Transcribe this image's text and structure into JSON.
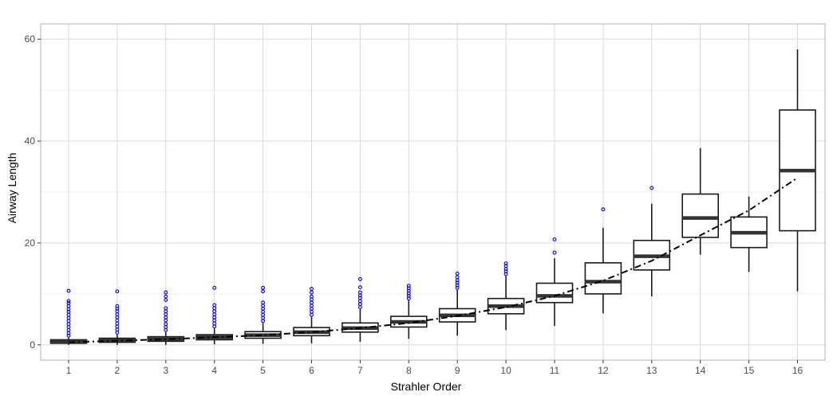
{
  "chart_data": {
    "type": "box",
    "title": "",
    "xlabel": "Strahler Order",
    "ylabel": "Airway Length",
    "categories": [
      "1",
      "2",
      "3",
      "4",
      "5",
      "6",
      "7",
      "8",
      "9",
      "10",
      "11",
      "12",
      "13",
      "14",
      "15",
      "16"
    ],
    "ylim": [
      -3,
      63
    ],
    "yticks": [
      0,
      20,
      40,
      60
    ],
    "ytick_labels": [
      "0",
      "20",
      "40",
      "60"
    ],
    "grid": true,
    "legend": "none",
    "boxes": [
      {
        "q1": 0.3,
        "median": 0.6,
        "q3": 1.0,
        "whisker_low": 0.0,
        "whisker_high": 1.4,
        "outliers": [
          1.8,
          2.3,
          2.9,
          3.5,
          4.1,
          4.7,
          5.3,
          5.9,
          6.5,
          7.0,
          7.6,
          8.2,
          8.6,
          10.6
        ]
      },
      {
        "q1": 0.5,
        "median": 0.9,
        "q3": 1.3,
        "whisker_low": 0.0,
        "whisker_high": 2.0,
        "outliers": [
          2.4,
          3.0,
          3.6,
          4.2,
          4.8,
          5.4,
          6.0,
          6.6,
          7.1,
          7.6,
          10.5
        ]
      },
      {
        "q1": 0.7,
        "median": 1.1,
        "q3": 1.6,
        "whisker_low": 0.0,
        "whisker_high": 2.5,
        "outliers": [
          2.9,
          3.5,
          4.1,
          4.8,
          5.4,
          6.0,
          6.6,
          7.2,
          8.8,
          9.5,
          10.3
        ]
      },
      {
        "q1": 1.0,
        "median": 1.5,
        "q3": 2.0,
        "whisker_low": 0.1,
        "whisker_high": 3.2,
        "outliers": [
          3.6,
          4.2,
          4.8,
          5.4,
          6.0,
          6.6,
          7.2,
          7.8,
          11.2
        ]
      },
      {
        "q1": 1.3,
        "median": 1.9,
        "q3": 2.6,
        "whisker_low": 0.2,
        "whisker_high": 4.3,
        "outliers": [
          4.7,
          5.3,
          5.9,
          6.5,
          7.1,
          7.7,
          8.3,
          10.5,
          11.2
        ]
      },
      {
        "q1": 1.8,
        "median": 2.5,
        "q3": 3.4,
        "whisker_low": 0.3,
        "whisker_high": 5.5,
        "outliers": [
          5.9,
          6.5,
          7.1,
          7.7,
          8.3,
          8.9,
          9.5,
          10.3,
          11.0
        ]
      },
      {
        "q1": 2.5,
        "median": 3.3,
        "q3": 4.3,
        "whisker_low": 0.6,
        "whisker_high": 7.0,
        "outliers": [
          7.4,
          8.0,
          8.6,
          9.2,
          9.7,
          10.3,
          11.3,
          12.9
        ]
      },
      {
        "q1": 3.5,
        "median": 4.5,
        "q3": 5.6,
        "whisker_low": 1.2,
        "whisker_high": 8.7,
        "outliers": [
          9.1,
          9.6,
          10.1,
          10.6,
          11.1,
          11.6
        ]
      },
      {
        "q1": 4.5,
        "median": 5.8,
        "q3": 7.1,
        "whisker_low": 1.8,
        "whisker_high": 10.8,
        "outliers": [
          11.2,
          11.7,
          12.2,
          12.7,
          13.3,
          14.0
        ]
      },
      {
        "q1": 6.1,
        "median": 7.6,
        "q3": 9.1,
        "whisker_low": 2.9,
        "whisker_high": 13.5,
        "outliers": [
          13.9,
          14.4,
          14.9,
          15.5,
          16.0
        ]
      },
      {
        "q1": 8.3,
        "median": 9.6,
        "q3": 12.1,
        "whisker_low": 3.7,
        "whisker_high": 17.0,
        "outliers": [
          18.1,
          20.7
        ]
      },
      {
        "q1": 10.0,
        "median": 12.4,
        "q3": 16.1,
        "whisker_low": 6.2,
        "whisker_high": 23.0,
        "outliers": [
          26.6
        ]
      },
      {
        "q1": 14.7,
        "median": 17.4,
        "q3": 20.5,
        "whisker_low": 9.5,
        "whisker_high": 27.7,
        "outliers": [
          30.8
        ]
      },
      {
        "q1": 21.1,
        "median": 24.9,
        "q3": 29.6,
        "whisker_low": 17.7,
        "whisker_high": 38.6,
        "outliers": []
      },
      {
        "q1": 19.1,
        "median": 22.0,
        "q3": 25.1,
        "whisker_low": 14.3,
        "whisker_high": 29.1,
        "outliers": []
      },
      {
        "q1": 22.4,
        "median": 34.2,
        "q3": 46.1,
        "whisker_low": 10.5,
        "whisker_high": 58.0,
        "outliers": []
      }
    ],
    "trend_line": {
      "style": "dashed",
      "color": "#000000",
      "values": [
        0.5,
        0.8,
        1.1,
        1.5,
        1.9,
        2.5,
        3.3,
        4.3,
        5.7,
        7.4,
        9.6,
        12.6,
        16.5,
        21.5,
        26.4,
        32.8
      ]
    },
    "colors": {
      "box_outline": "#1a1a1a",
      "median_bar": "#333333",
      "outlier": "#0000ff",
      "grid_major": "#d9d9d9",
      "grid_minor": "#ebebeb",
      "panel_border": "#b3b3b3"
    }
  }
}
